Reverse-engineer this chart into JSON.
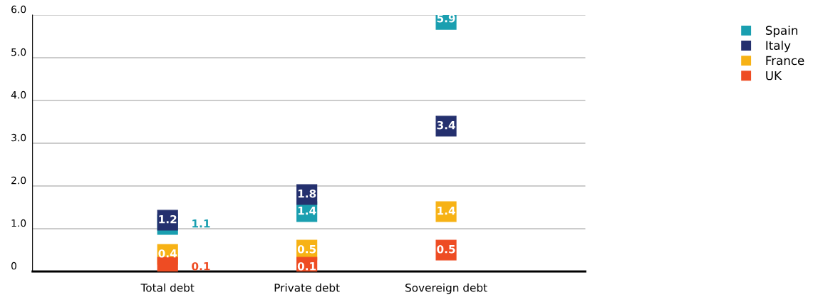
{
  "chart_data": {
    "type": "scatter",
    "categories": [
      "Total debt",
      "Private debt",
      "Sovereign debt"
    ],
    "series": [
      {
        "name": "Spain",
        "color": "#1a9fb0",
        "values": [
          1.1,
          1.4,
          5.9
        ]
      },
      {
        "name": "Italy",
        "color": "#24306e",
        "values": [
          1.2,
          1.8,
          3.4
        ]
      },
      {
        "name": "France",
        "color": "#f7b215",
        "values": [
          0.4,
          0.5,
          1.4
        ]
      },
      {
        "name": "UK",
        "color": "#ee4c23",
        "values": [
          0.1,
          0.1,
          0.5
        ]
      }
    ],
    "ylim": [
      0,
      6
    ],
    "yticks": [
      {
        "value": 0,
        "label": "0"
      },
      {
        "value": 1,
        "label": "1.0"
      },
      {
        "value": 2,
        "label": "2.0"
      },
      {
        "value": 3,
        "label": "3.0"
      },
      {
        "value": 4,
        "label": "4.0"
      },
      {
        "value": 5,
        "label": "5.0"
      },
      {
        "value": 6,
        "label": "6.0"
      }
    ],
    "grid": "y",
    "legend": "top right",
    "marker": "square",
    "data_labels": true
  }
}
